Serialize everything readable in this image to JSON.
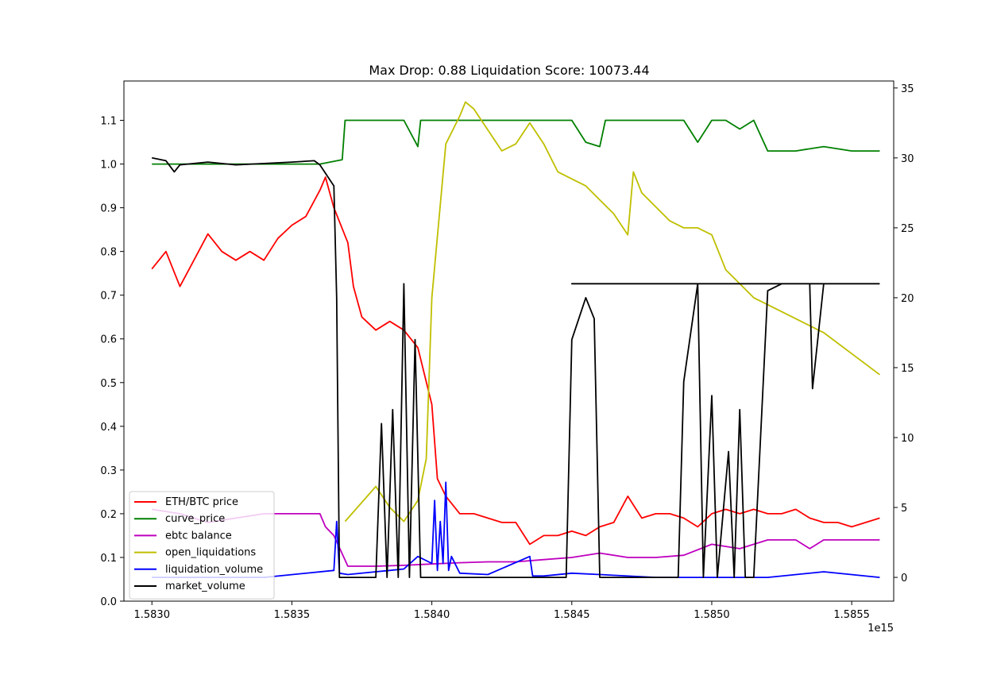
{
  "chart_data": {
    "type": "line",
    "title": "Max Drop: 0.88 Liquidation Score: 10073.44",
    "xlabel": "",
    "ylabel": "",
    "x_offset_label": "1e15",
    "xlim": [
      1.5829,
      1.58565
    ],
    "ylim": [
      0.0,
      1.19
    ],
    "ylim_right": [
      -1.7,
      35.5
    ],
    "x_ticks": [
      {
        "value": 1.583,
        "label": "1.5830"
      },
      {
        "value": 1.5835,
        "label": "1.5835"
      },
      {
        "value": 1.584,
        "label": "1.5840"
      },
      {
        "value": 1.5845,
        "label": "1.5845"
      },
      {
        "value": 1.585,
        "label": "1.5850"
      },
      {
        "value": 1.5855,
        "label": "1.5855"
      }
    ],
    "y_ticks": [
      {
        "value": 0.0,
        "label": "0.0"
      },
      {
        "value": 0.1,
        "label": "0.1"
      },
      {
        "value": 0.2,
        "label": "0.2"
      },
      {
        "value": 0.3,
        "label": "0.3"
      },
      {
        "value": 0.4,
        "label": "0.4"
      },
      {
        "value": 0.5,
        "label": "0.5"
      },
      {
        "value": 0.6,
        "label": "0.6"
      },
      {
        "value": 0.7,
        "label": "0.7"
      },
      {
        "value": 0.8,
        "label": "0.8"
      },
      {
        "value": 0.9,
        "label": "0.9"
      },
      {
        "value": 1.0,
        "label": "1.0"
      },
      {
        "value": 1.1,
        "label": "1.1"
      }
    ],
    "y_ticks_right": [
      {
        "value": 0,
        "label": "0"
      },
      {
        "value": 5,
        "label": "5"
      },
      {
        "value": 10,
        "label": "10"
      },
      {
        "value": 15,
        "label": "15"
      },
      {
        "value": 20,
        "label": "20"
      },
      {
        "value": 25,
        "label": "25"
      },
      {
        "value": 30,
        "label": "30"
      },
      {
        "value": 35,
        "label": "35"
      }
    ],
    "legend_position": "lower-left",
    "grid": false,
    "series": [
      {
        "name": "ETH/BTC price",
        "color": "#ff0000",
        "axis": "left",
        "x": [
          1.583,
          1.58305,
          1.5831,
          1.58315,
          1.5832,
          1.58325,
          1.5833,
          1.58335,
          1.5834,
          1.58345,
          1.5835,
          1.58355,
          1.5836,
          1.58362,
          1.58365,
          1.5837,
          1.58372,
          1.58375,
          1.5838,
          1.58385,
          1.5839,
          1.58395,
          1.584,
          1.58402,
          1.58405,
          1.5841,
          1.58415,
          1.5842,
          1.58425,
          1.5843,
          1.58435,
          1.5844,
          1.58445,
          1.5845,
          1.58455,
          1.5846,
          1.58465,
          1.5847,
          1.58475,
          1.5848,
          1.58485,
          1.5849,
          1.58495,
          1.585,
          1.58505,
          1.5851,
          1.58515,
          1.5852,
          1.58525,
          1.5853,
          1.58535,
          1.5854,
          1.58545,
          1.5855,
          1.58555,
          1.5856
        ],
        "values": [
          0.76,
          0.8,
          0.72,
          0.78,
          0.84,
          0.8,
          0.78,
          0.8,
          0.78,
          0.83,
          0.86,
          0.88,
          0.94,
          0.97,
          0.9,
          0.82,
          0.72,
          0.65,
          0.62,
          0.64,
          0.62,
          0.58,
          0.45,
          0.28,
          0.24,
          0.2,
          0.2,
          0.19,
          0.18,
          0.18,
          0.13,
          0.15,
          0.15,
          0.16,
          0.15,
          0.17,
          0.18,
          0.24,
          0.19,
          0.2,
          0.2,
          0.19,
          0.17,
          0.2,
          0.21,
          0.2,
          0.21,
          0.2,
          0.2,
          0.21,
          0.19,
          0.18,
          0.18,
          0.17,
          0.18,
          0.19
        ]
      },
      {
        "name": "curve_price",
        "color": "#008000",
        "axis": "left",
        "x": [
          1.583,
          1.5831,
          1.5832,
          1.5833,
          1.5834,
          1.5835,
          1.5836,
          1.58368,
          1.58369,
          1.5838,
          1.5839,
          1.58395,
          1.58396,
          1.5841,
          1.5842,
          1.5844,
          1.5845,
          1.58455,
          1.5846,
          1.58462,
          1.5848,
          1.5849,
          1.58495,
          1.585,
          1.58505,
          1.5851,
          1.58515,
          1.5852,
          1.5853,
          1.5854,
          1.5855,
          1.5856
        ],
        "values": [
          1.0,
          1.0,
          1.0,
          1.0,
          1.0,
          1.0,
          1.0,
          1.01,
          1.1,
          1.1,
          1.1,
          1.04,
          1.1,
          1.1,
          1.1,
          1.1,
          1.1,
          1.05,
          1.04,
          1.1,
          1.1,
          1.1,
          1.05,
          1.1,
          1.1,
          1.08,
          1.1,
          1.03,
          1.03,
          1.04,
          1.03,
          1.03
        ]
      },
      {
        "name": "ebtc balance",
        "color": "#bf00bf",
        "axis": "left",
        "x": [
          1.583,
          1.5831,
          1.5832,
          1.5833,
          1.5834,
          1.5835,
          1.5836,
          1.58362,
          1.58365,
          1.5837,
          1.5838,
          1.5839,
          1.584,
          1.5841,
          1.5842,
          1.5843,
          1.5844,
          1.5845,
          1.5846,
          1.5847,
          1.5848,
          1.5849,
          1.585,
          1.5851,
          1.5852,
          1.5853,
          1.58535,
          1.5854,
          1.5855,
          1.5856
        ],
        "values": [
          0.21,
          0.2,
          0.18,
          0.19,
          0.2,
          0.2,
          0.2,
          0.17,
          0.15,
          0.08,
          0.08,
          0.082,
          0.085,
          0.088,
          0.09,
          0.09,
          0.095,
          0.1,
          0.11,
          0.1,
          0.1,
          0.105,
          0.13,
          0.12,
          0.14,
          0.14,
          0.12,
          0.14,
          0.14,
          0.14
        ]
      },
      {
        "name": "open_liquidations",
        "color": "#bfbf00",
        "axis": "right",
        "x": [
          1.58369,
          1.5838,
          1.58385,
          1.5839,
          1.58395,
          1.58398,
          1.584,
          1.58405,
          1.5841,
          1.58412,
          1.58415,
          1.5842,
          1.58425,
          1.5843,
          1.58435,
          1.5844,
          1.58445,
          1.5845,
          1.58455,
          1.5846,
          1.58465,
          1.5847,
          1.58472,
          1.58475,
          1.5848,
          1.58485,
          1.5849,
          1.58495,
          1.585,
          1.58505,
          1.5851,
          1.58515,
          1.5852,
          1.5853,
          1.5854,
          1.5855,
          1.5856
        ],
        "values": [
          4.0,
          6.5,
          5.0,
          4.0,
          5.5,
          8.5,
          20.0,
          31.0,
          33.0,
          34.0,
          33.5,
          32.0,
          30.5,
          31.0,
          32.5,
          31.0,
          29.0,
          28.5,
          28.0,
          27.0,
          26.0,
          24.5,
          29.0,
          27.5,
          26.5,
          25.5,
          25.0,
          25.0,
          24.5,
          22.0,
          21.0,
          20.0,
          19.5,
          18.5,
          17.5,
          16.0,
          14.5
        ]
      },
      {
        "name": "liquidation_volume",
        "color": "#0000ff",
        "axis": "right",
        "x": [
          1.583,
          1.5832,
          1.5834,
          1.58365,
          1.58366,
          1.58367,
          1.5837,
          1.5838,
          1.58385,
          1.5839,
          1.58395,
          1.584,
          1.58401,
          1.58402,
          1.58403,
          1.58404,
          1.58405,
          1.58406,
          1.58407,
          1.5841,
          1.5842,
          1.58435,
          1.58436,
          1.5844,
          1.5845,
          1.5846,
          1.5848,
          1.585,
          1.5852,
          1.5854,
          1.5856
        ],
        "values": [
          0,
          0,
          0,
          0.5,
          4.0,
          0.3,
          0.2,
          0.4,
          0.5,
          0.6,
          1.5,
          1.0,
          5.5,
          0.5,
          4.0,
          1.0,
          6.8,
          0.5,
          1.5,
          0.3,
          0.2,
          1.5,
          0.1,
          0.1,
          0.3,
          0.2,
          0,
          0,
          0,
          0.4,
          0
        ]
      },
      {
        "name": "market_volume",
        "color": "#000000",
        "axis": "right",
        "x": [
          1.583,
          1.58305,
          1.58308,
          1.5831,
          1.5832,
          1.5833,
          1.5834,
          1.5835,
          1.58358,
          1.5836,
          1.58365,
          1.58366,
          1.58367,
          1.58368,
          1.5837,
          1.5838,
          1.58382,
          1.58384,
          1.58386,
          1.58388,
          1.5839,
          1.58392,
          1.58394,
          1.58396,
          1.584,
          1.58405,
          1.5843,
          1.5844,
          1.58448,
          1.5845,
          1.58455,
          1.58458,
          1.5846,
          1.58462,
          1.5847,
          1.5848,
          1.58488,
          1.5849,
          1.58495,
          1.58497,
          1.585,
          1.58502,
          1.58506,
          1.58508,
          1.5851,
          1.58512,
          1.58515,
          1.5852,
          1.58525,
          1.5853,
          1.58535,
          1.58536,
          1.5854,
          1.5845,
          1.5855,
          1.5856
        ],
        "values": [
          30.0,
          29.8,
          29.0,
          29.5,
          29.7,
          29.5,
          29.6,
          29.7,
          29.8,
          29.5,
          28.0,
          20.0,
          0.0,
          0.0,
          0.0,
          0.0,
          11.0,
          0.0,
          12.0,
          0.0,
          21.0,
          0.0,
          17.0,
          0.0,
          0.0,
          0.0,
          0.0,
          0.0,
          0.0,
          17.0,
          20.0,
          18.5,
          0.0,
          0.0,
          0.0,
          0.0,
          0.0,
          14.0,
          21.0,
          0.0,
          13.0,
          0.0,
          9.0,
          0.0,
          12.0,
          0.0,
          0.0,
          20.5,
          21.0,
          21.0,
          21.0,
          13.5,
          21.0,
          21.0,
          21.0,
          21.0
        ]
      }
    ]
  }
}
